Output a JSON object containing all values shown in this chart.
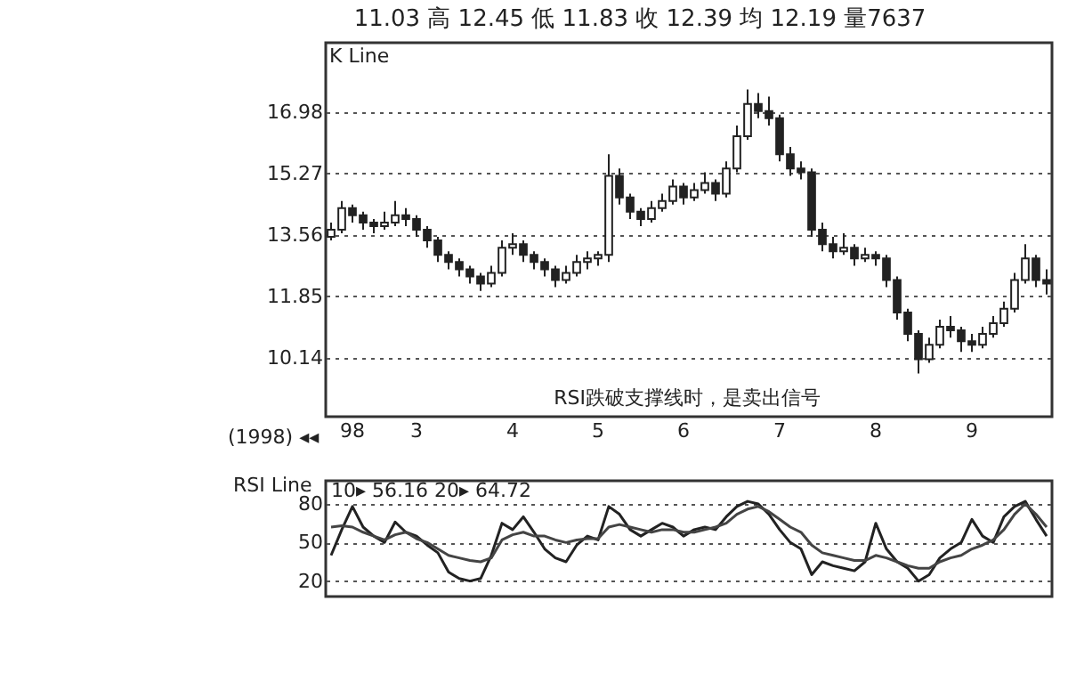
{
  "chart_data": [
    {
      "type": "candlestick",
      "title": "11.03 高 12.45 低 11.83 收 12.39 均 12.19 量7637",
      "color": "#222222",
      "categories": [
        null,
        null,
        "98",
        null,
        null,
        null,
        null,
        null,
        "3",
        null,
        null,
        null,
        null,
        null,
        null,
        null,
        null,
        "4",
        null,
        null,
        null,
        null,
        null,
        null,
        null,
        "5",
        null,
        null,
        null,
        null,
        null,
        null,
        null,
        "6",
        null,
        null,
        null,
        null,
        null,
        null,
        null,
        null,
        "7",
        null,
        null,
        null,
        null,
        null,
        null,
        null,
        null,
        "8",
        null,
        null,
        null,
        null,
        null,
        null,
        null,
        null,
        "9",
        null,
        null,
        null,
        null,
        null,
        null,
        null
      ],
      "ohlc": [
        [
          13.5,
          13.9,
          13.4,
          13.7
        ],
        [
          13.7,
          14.5,
          13.6,
          14.3
        ],
        [
          14.3,
          14.4,
          13.9,
          14.1
        ],
        [
          14.1,
          14.2,
          13.7,
          13.9
        ],
        [
          13.9,
          14.0,
          13.6,
          13.8
        ],
        [
          13.8,
          14.2,
          13.7,
          13.9
        ],
        [
          13.9,
          14.5,
          13.8,
          14.1
        ],
        [
          14.1,
          14.3,
          13.8,
          14.0
        ],
        [
          14.0,
          14.1,
          13.5,
          13.7
        ],
        [
          13.7,
          13.8,
          13.2,
          13.4
        ],
        [
          13.4,
          13.5,
          12.8,
          13.0
        ],
        [
          13.0,
          13.1,
          12.6,
          12.8
        ],
        [
          12.8,
          12.9,
          12.4,
          12.6
        ],
        [
          12.6,
          12.7,
          12.2,
          12.4
        ],
        [
          12.4,
          12.5,
          12.0,
          12.2
        ],
        [
          12.2,
          12.7,
          12.1,
          12.5
        ],
        [
          12.5,
          13.4,
          12.4,
          13.2
        ],
        [
          13.2,
          13.6,
          13.0,
          13.3
        ],
        [
          13.3,
          13.4,
          12.8,
          13.0
        ],
        [
          13.0,
          13.1,
          12.6,
          12.8
        ],
        [
          12.8,
          12.9,
          12.4,
          12.6
        ],
        [
          12.6,
          12.7,
          12.1,
          12.3
        ],
        [
          12.3,
          12.7,
          12.2,
          12.5
        ],
        [
          12.5,
          13.0,
          12.4,
          12.8
        ],
        [
          12.8,
          13.1,
          12.6,
          12.9
        ],
        [
          12.9,
          13.1,
          12.7,
          13.0
        ],
        [
          13.0,
          15.8,
          12.8,
          15.2
        ],
        [
          15.2,
          15.4,
          14.4,
          14.6
        ],
        [
          14.6,
          14.7,
          14.0,
          14.2
        ],
        [
          14.2,
          14.3,
          13.8,
          14.0
        ],
        [
          14.0,
          14.5,
          13.9,
          14.3
        ],
        [
          14.3,
          14.7,
          14.2,
          14.5
        ],
        [
          14.5,
          15.1,
          14.4,
          14.9
        ],
        [
          14.9,
          15.0,
          14.4,
          14.6
        ],
        [
          14.6,
          15.0,
          14.5,
          14.8
        ],
        [
          14.8,
          15.3,
          14.7,
          15.0
        ],
        [
          15.0,
          15.1,
          14.5,
          14.7
        ],
        [
          14.7,
          15.6,
          14.6,
          15.4
        ],
        [
          15.4,
          16.6,
          15.3,
          16.3
        ],
        [
          16.3,
          17.6,
          16.2,
          17.2
        ],
        [
          17.2,
          17.5,
          16.8,
          17.0
        ],
        [
          17.0,
          17.4,
          16.6,
          16.8
        ],
        [
          16.8,
          16.9,
          15.6,
          15.8
        ],
        [
          15.8,
          16.0,
          15.2,
          15.4
        ],
        [
          15.4,
          15.6,
          15.1,
          15.3
        ],
        [
          15.3,
          15.4,
          13.5,
          13.7
        ],
        [
          13.7,
          13.9,
          13.1,
          13.3
        ],
        [
          13.3,
          13.5,
          12.9,
          13.1
        ],
        [
          13.1,
          13.6,
          13.0,
          13.2
        ],
        [
          13.2,
          13.3,
          12.7,
          12.9
        ],
        [
          12.9,
          13.2,
          12.8,
          13.0
        ],
        [
          13.0,
          13.1,
          12.7,
          12.9
        ],
        [
          12.9,
          13.0,
          12.1,
          12.3
        ],
        [
          12.3,
          12.4,
          11.2,
          11.4
        ],
        [
          11.4,
          11.5,
          10.6,
          10.8
        ],
        [
          10.8,
          10.9,
          9.7,
          10.1
        ],
        [
          10.1,
          10.7,
          10.0,
          10.5
        ],
        [
          10.5,
          11.2,
          10.4,
          11.0
        ],
        [
          11.0,
          11.3,
          10.7,
          10.9
        ],
        [
          10.9,
          11.0,
          10.3,
          10.6
        ],
        [
          10.6,
          10.8,
          10.3,
          10.5
        ],
        [
          10.5,
          11.0,
          10.4,
          10.8
        ],
        [
          10.8,
          11.3,
          10.7,
          11.1
        ],
        [
          11.1,
          11.7,
          11.0,
          11.5
        ],
        [
          11.5,
          12.5,
          11.4,
          12.3
        ],
        [
          12.3,
          13.3,
          12.2,
          12.9
        ],
        [
          12.9,
          13.0,
          12.1,
          12.3
        ],
        [
          12.3,
          12.6,
          11.9,
          12.2
        ]
      ],
      "ylim": [
        8.5,
        18.9
      ],
      "yticks": [
        10.14,
        11.85,
        13.56,
        15.27,
        16.98
      ],
      "grid": "y",
      "annotations": [
        "K Line",
        "(1998) ◂◂",
        "RSI跌破支撑线时，是卖出信号"
      ]
    },
    {
      "type": "line",
      "categories": [
        null,
        null,
        "98",
        null,
        null,
        null,
        null,
        null,
        "3",
        null,
        null,
        null,
        null,
        null,
        null,
        null,
        null,
        "4",
        null,
        null,
        null,
        null,
        null,
        null,
        null,
        "5",
        null,
        null,
        null,
        null,
        null,
        null,
        null,
        "6",
        null,
        null,
        null,
        null,
        null,
        null,
        null,
        null,
        "7",
        null,
        null,
        null,
        null,
        null,
        null,
        null,
        null,
        "8",
        null,
        null,
        null,
        null,
        null,
        null,
        null,
        null,
        "9",
        null,
        null,
        null,
        null,
        null,
        null,
        null
      ],
      "series": [
        {
          "color": "#222222",
          "values": [
            40,
            60,
            78,
            62,
            55,
            50,
            66,
            58,
            55,
            48,
            42,
            27,
            22,
            20,
            22,
            40,
            65,
            60,
            70,
            58,
            45,
            38,
            35,
            48,
            55,
            52,
            78,
            72,
            60,
            55,
            60,
            65,
            62,
            55,
            60,
            62,
            60,
            70,
            78,
            82,
            80,
            72,
            60,
            50,
            45,
            25,
            35,
            32,
            30,
            28,
            35,
            65,
            45,
            35,
            30,
            20,
            25,
            38,
            45,
            50,
            68,
            55,
            50,
            70,
            78,
            82,
            68,
            55
          ]
        },
        {
          "color": "#444444",
          "values": [
            62,
            63,
            62,
            58,
            55,
            52,
            56,
            58,
            53,
            50,
            45,
            40,
            38,
            36,
            35,
            38,
            52,
            56,
            58,
            55,
            55,
            52,
            50,
            52,
            53,
            53,
            62,
            64,
            62,
            60,
            58,
            60,
            60,
            58,
            58,
            60,
            62,
            65,
            72,
            76,
            78,
            74,
            68,
            62,
            58,
            48,
            42,
            40,
            38,
            36,
            36,
            40,
            38,
            35,
            32,
            30,
            30,
            35,
            38,
            40,
            45,
            48,
            52,
            60,
            72,
            80,
            72,
            62
          ]
        }
      ],
      "ylim": [
        8,
        98
      ],
      "yticks": [
        20,
        50,
        80
      ],
      "grid": "y",
      "tick_labels": "y",
      "annotations": [
        "RSI Line",
        "10▸ 56.16 20▸ 64.72"
      ]
    }
  ]
}
